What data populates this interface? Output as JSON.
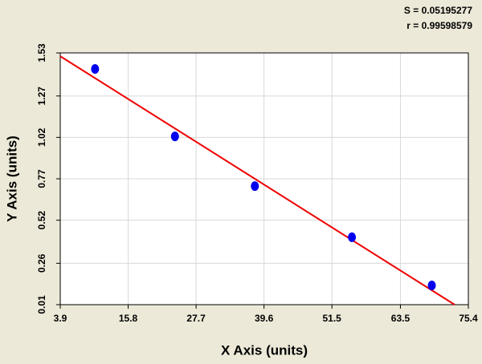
{
  "chart_data": {
    "type": "scatter",
    "annotations": [
      "S = 0.05195277",
      "r = 0.99598579"
    ],
    "x_label": "X Axis (units)",
    "y_label": "Y Axis (units)",
    "x": [
      10,
      24,
      38,
      55,
      69
    ],
    "series": [
      {
        "color": "#0000ee",
        "values": [
          1.433,
          1.026,
          0.726,
          0.417,
          0.126
        ]
      }
    ],
    "fit_line": {
      "color": "#ee0000",
      "x": [
        3.9,
        73.0
      ],
      "y": [
        1.51,
        0.01
      ]
    },
    "xlim": [
      3.9,
      75.4
    ],
    "xticks": [
      3.9,
      15.8,
      27.7,
      39.6,
      51.5,
      63.5,
      75.4
    ],
    "ylim": [
      0.01,
      1.53
    ],
    "yticks": [
      0.01,
      0.26,
      0.52,
      0.77,
      1.02,
      1.27,
      1.53
    ],
    "grid": true
  }
}
